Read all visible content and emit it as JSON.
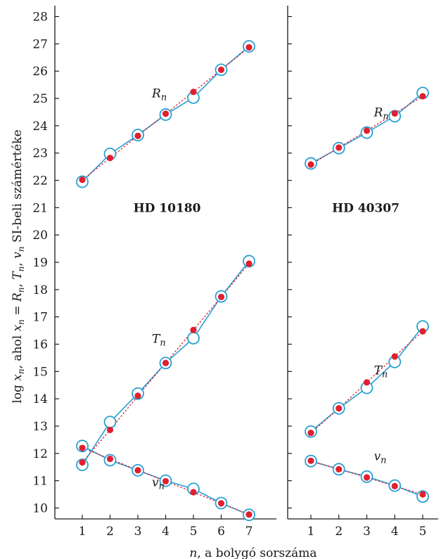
{
  "chart_data": {
    "type": "line",
    "ylabel_parts": [
      "log ",
      "x",
      "n",
      ", ahol ",
      "x",
      "n",
      " = ",
      "R",
      "n",
      ", ",
      "T",
      "n",
      ", ",
      "v",
      "n",
      " SI-beli számértéke"
    ],
    "xlabel_parts": [
      "n",
      ", a bolygó sorszáma"
    ],
    "ylim": [
      9.6,
      28.4
    ],
    "yticks": [
      10,
      11,
      12,
      13,
      14,
      15,
      16,
      17,
      18,
      19,
      20,
      21,
      22,
      23,
      24,
      25,
      26,
      27,
      28
    ],
    "colors": {
      "model": "#2aa0d4",
      "observed": "#e02030",
      "axis": "#1a1a1a"
    },
    "panels": [
      {
        "title": "HD 10180",
        "xticks": [
          1,
          2,
          3,
          4,
          5,
          6,
          7
        ],
        "series": [
          {
            "label": "R",
            "label_sub": "n",
            "label_at": [
              3.0,
              25.2
            ],
            "model": [
              [
                1,
                21.95
              ],
              [
                2,
                22.97
              ],
              [
                3,
                23.66
              ],
              [
                4,
                24.41
              ],
              [
                5,
                25.03
              ],
              [
                6,
                26.05
              ],
              [
                7,
                26.91
              ]
            ],
            "observed": [
              [
                1,
                22.02
              ],
              [
                2,
                22.82
              ],
              [
                3,
                23.63
              ],
              [
                4,
                24.44
              ],
              [
                5,
                25.24
              ],
              [
                6,
                26.05
              ],
              [
                7,
                26.87
              ]
            ]
          },
          {
            "label": "T",
            "label_sub": "n",
            "label_at": [
              3.0,
              16.2
            ],
            "model": [
              [
                1,
                11.58
              ],
              [
                2,
                13.15
              ],
              [
                3,
                14.19
              ],
              [
                4,
                15.31
              ],
              [
                5,
                16.22
              ],
              [
                6,
                17.75
              ],
              [
                7,
                19.04
              ]
            ],
            "observed": [
              [
                1,
                11.67
              ],
              [
                2,
                12.86
              ],
              [
                3,
                14.11
              ],
              [
                4,
                15.31
              ],
              [
                5,
                16.52
              ],
              [
                6,
                17.73
              ],
              [
                7,
                18.95
              ]
            ]
          },
          {
            "label": "v",
            "label_sub": "n",
            "label_at": [
              3.0,
              10.95
            ],
            "model": [
              [
                1,
                12.27
              ],
              [
                2,
                11.75
              ],
              [
                3,
                11.38
              ],
              [
                4,
                11.0
              ],
              [
                5,
                10.7
              ],
              [
                6,
                10.18
              ],
              [
                7,
                9.75
              ]
            ],
            "observed": [
              [
                1,
                12.2
              ],
              [
                2,
                11.8
              ],
              [
                3,
                11.38
              ],
              [
                4,
                10.98
              ],
              [
                5,
                10.58
              ],
              [
                6,
                10.17
              ],
              [
                7,
                9.76
              ]
            ]
          }
        ]
      },
      {
        "title": "HD 40307",
        "xticks": [
          1,
          2,
          3,
          4,
          5
        ],
        "series": [
          {
            "label": "R",
            "label_sub": "n",
            "label_at": [
              2.75,
              24.5
            ],
            "model": [
              [
                1,
                22.62
              ],
              [
                2,
                23.18
              ],
              [
                3,
                23.75
              ],
              [
                4,
                24.35
              ],
              [
                5,
                25.2
              ]
            ],
            "observed": [
              [
                1,
                22.58
              ],
              [
                2,
                23.2
              ],
              [
                3,
                23.82
              ],
              [
                4,
                24.45
              ],
              [
                5,
                25.08
              ]
            ]
          },
          {
            "label": "T",
            "label_sub": "n",
            "label_at": [
              2.75,
              15.05
            ],
            "model": [
              [
                1,
                12.8
              ],
              [
                2,
                13.65
              ],
              [
                3,
                14.4
              ],
              [
                4,
                15.35
              ],
              [
                5,
                16.65
              ]
            ],
            "observed": [
              [
                1,
                12.75
              ],
              [
                2,
                13.65
              ],
              [
                3,
                14.6
              ],
              [
                4,
                15.55
              ],
              [
                5,
                16.47
              ]
            ]
          },
          {
            "label": "v",
            "label_sub": "n",
            "label_at": [
              2.75,
              11.9
            ],
            "model": [
              [
                1,
                11.72
              ],
              [
                2,
                11.42
              ],
              [
                3,
                11.15
              ],
              [
                4,
                10.82
              ],
              [
                5,
                10.42
              ]
            ],
            "observed": [
              [
                1,
                11.73
              ],
              [
                2,
                11.42
              ],
              [
                3,
                11.12
              ],
              [
                4,
                10.8
              ],
              [
                5,
                10.5
              ]
            ]
          }
        ]
      }
    ]
  }
}
